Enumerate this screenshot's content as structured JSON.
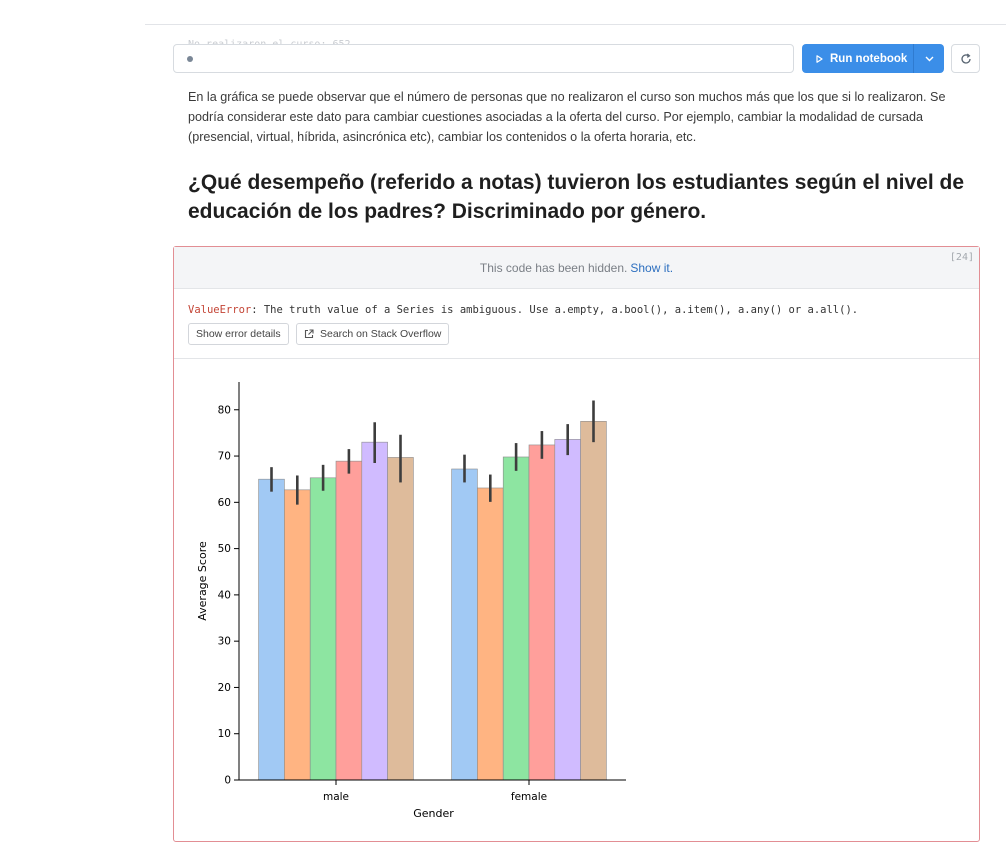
{
  "faded_line": "No realizaron el curso: 652",
  "toolbar": {
    "run_label": "Run notebook"
  },
  "markdown": {
    "paragraph": "En la gráfica se puede observar que el número de personas que no realizaron el curso son muchos más que los que si lo realizaron. Se podría considerar este dato para cambiar cuestiones asociadas a la oferta del curso. Por ejemplo, cambiar la modalidad de cursada (presencial, virtual, híbrida, asincrónica etc), cambiar los contenidos o la oferta horaria, etc.",
    "heading": "¿Qué desempeño (referido a notas) tuvieron los estudiantes según el nivel de educación de los padres? Discriminado por género."
  },
  "cell": {
    "hidden_text": "This code has been hidden.",
    "show_link": "Show it.",
    "exec_count": "[24]",
    "error_name": "ValueError",
    "error_message": ": The truth value of a Series is ambiguous. Use a.empty, a.bool(), a.item(), a.any() or a.all().",
    "show_error_button": "Show error details",
    "stackoverflow_button": "Search on Stack Overflow"
  },
  "chart_data": {
    "type": "bar",
    "xlabel": "Gender",
    "ylabel": "Average Score",
    "categories": [
      "male",
      "female"
    ],
    "ylim": [
      0,
      86
    ],
    "yticks": [
      0,
      10,
      20,
      30,
      40,
      50,
      60,
      70,
      80
    ],
    "colors": [
      "#a1c9f4",
      "#ffb482",
      "#8de5a1",
      "#ff9f9b",
      "#d0bbff",
      "#debb9b"
    ],
    "series": [
      {
        "values": [
          65,
          67.2
        ],
        "err": [
          [
            62.3,
            67.6
          ],
          [
            64.3,
            70.3
          ]
        ]
      },
      {
        "values": [
          62.7,
          63.1
        ],
        "err": [
          [
            59.5,
            65.8
          ],
          [
            60.1,
            66.0
          ]
        ]
      },
      {
        "values": [
          65.3,
          69.8
        ],
        "err": [
          [
            62.5,
            68.1
          ],
          [
            66.8,
            72.8
          ]
        ]
      },
      {
        "values": [
          68.9,
          72.4
        ],
        "err": [
          [
            66.2,
            71.5
          ],
          [
            69.4,
            75.4
          ]
        ]
      },
      {
        "values": [
          73,
          73.6
        ],
        "err": [
          [
            68.5,
            77.3
          ],
          [
            70.2,
            76.9
          ]
        ]
      },
      {
        "values": [
          69.7,
          77.5
        ],
        "err": [
          [
            64.3,
            74.6
          ],
          [
            73.0,
            82.0
          ]
        ]
      }
    ]
  }
}
